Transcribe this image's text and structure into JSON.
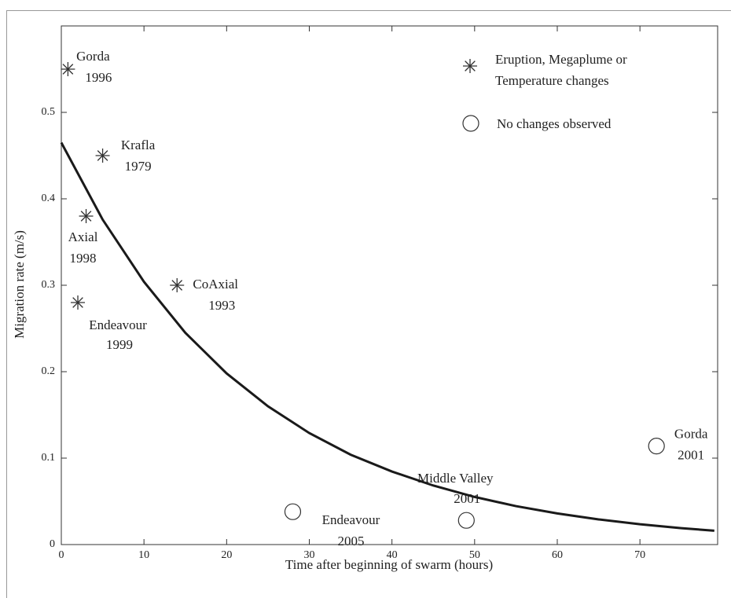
{
  "chart_data": {
    "type": "scatter",
    "xlabel": "Time after beginning of swarm (hours)",
    "ylabel": "Migration rate (m/s)",
    "xlim": [
      0,
      79.4
    ],
    "ylim": [
      0,
      0.6
    ],
    "xticks": [
      0,
      10,
      20,
      30,
      40,
      50,
      60,
      70
    ],
    "yticks": [
      0,
      0.1,
      0.2,
      0.3,
      0.4,
      0.5
    ],
    "series": [
      {
        "name": "Eruption, Megaplume or Temperature changes",
        "marker": "star",
        "color": "#333333",
        "x": [
          0.8,
          5,
          3,
          2,
          14
        ],
        "values": [
          0.55,
          0.45,
          0.38,
          0.28,
          0.3
        ],
        "labels": [
          {
            "name": "Gorda",
            "year": "1996"
          },
          {
            "name": "Krafla",
            "year": "1979"
          },
          {
            "name": "Axial",
            "year": "1998"
          },
          {
            "name": "Endeavour",
            "year": "1999"
          },
          {
            "name": "CoAxial",
            "year": "1993"
          }
        ]
      },
      {
        "name": "No changes observed",
        "marker": "circle",
        "color": "#333333",
        "x": [
          28,
          49,
          72
        ],
        "values": [
          0.038,
          0.028,
          0.114
        ],
        "labels": [
          {
            "name": "Endeavour",
            "year": "2005"
          },
          {
            "name": "Middle Valley",
            "year": "2001"
          },
          {
            "name": "Gorda",
            "year": "2001"
          }
        ]
      },
      {
        "marker": "line",
        "color": "#1a1a1a",
        "x": [
          0,
          5,
          10,
          15,
          20,
          25,
          30,
          35,
          40,
          45,
          50,
          55,
          60,
          65,
          70,
          75,
          79
        ],
        "values": [
          0.465,
          0.376,
          0.304,
          0.245,
          0.198,
          0.16,
          0.129,
          0.104,
          0.0845,
          0.0683,
          0.0551,
          0.0445,
          0.036,
          0.0291,
          0.0235,
          0.019,
          0.016
        ]
      }
    ]
  }
}
